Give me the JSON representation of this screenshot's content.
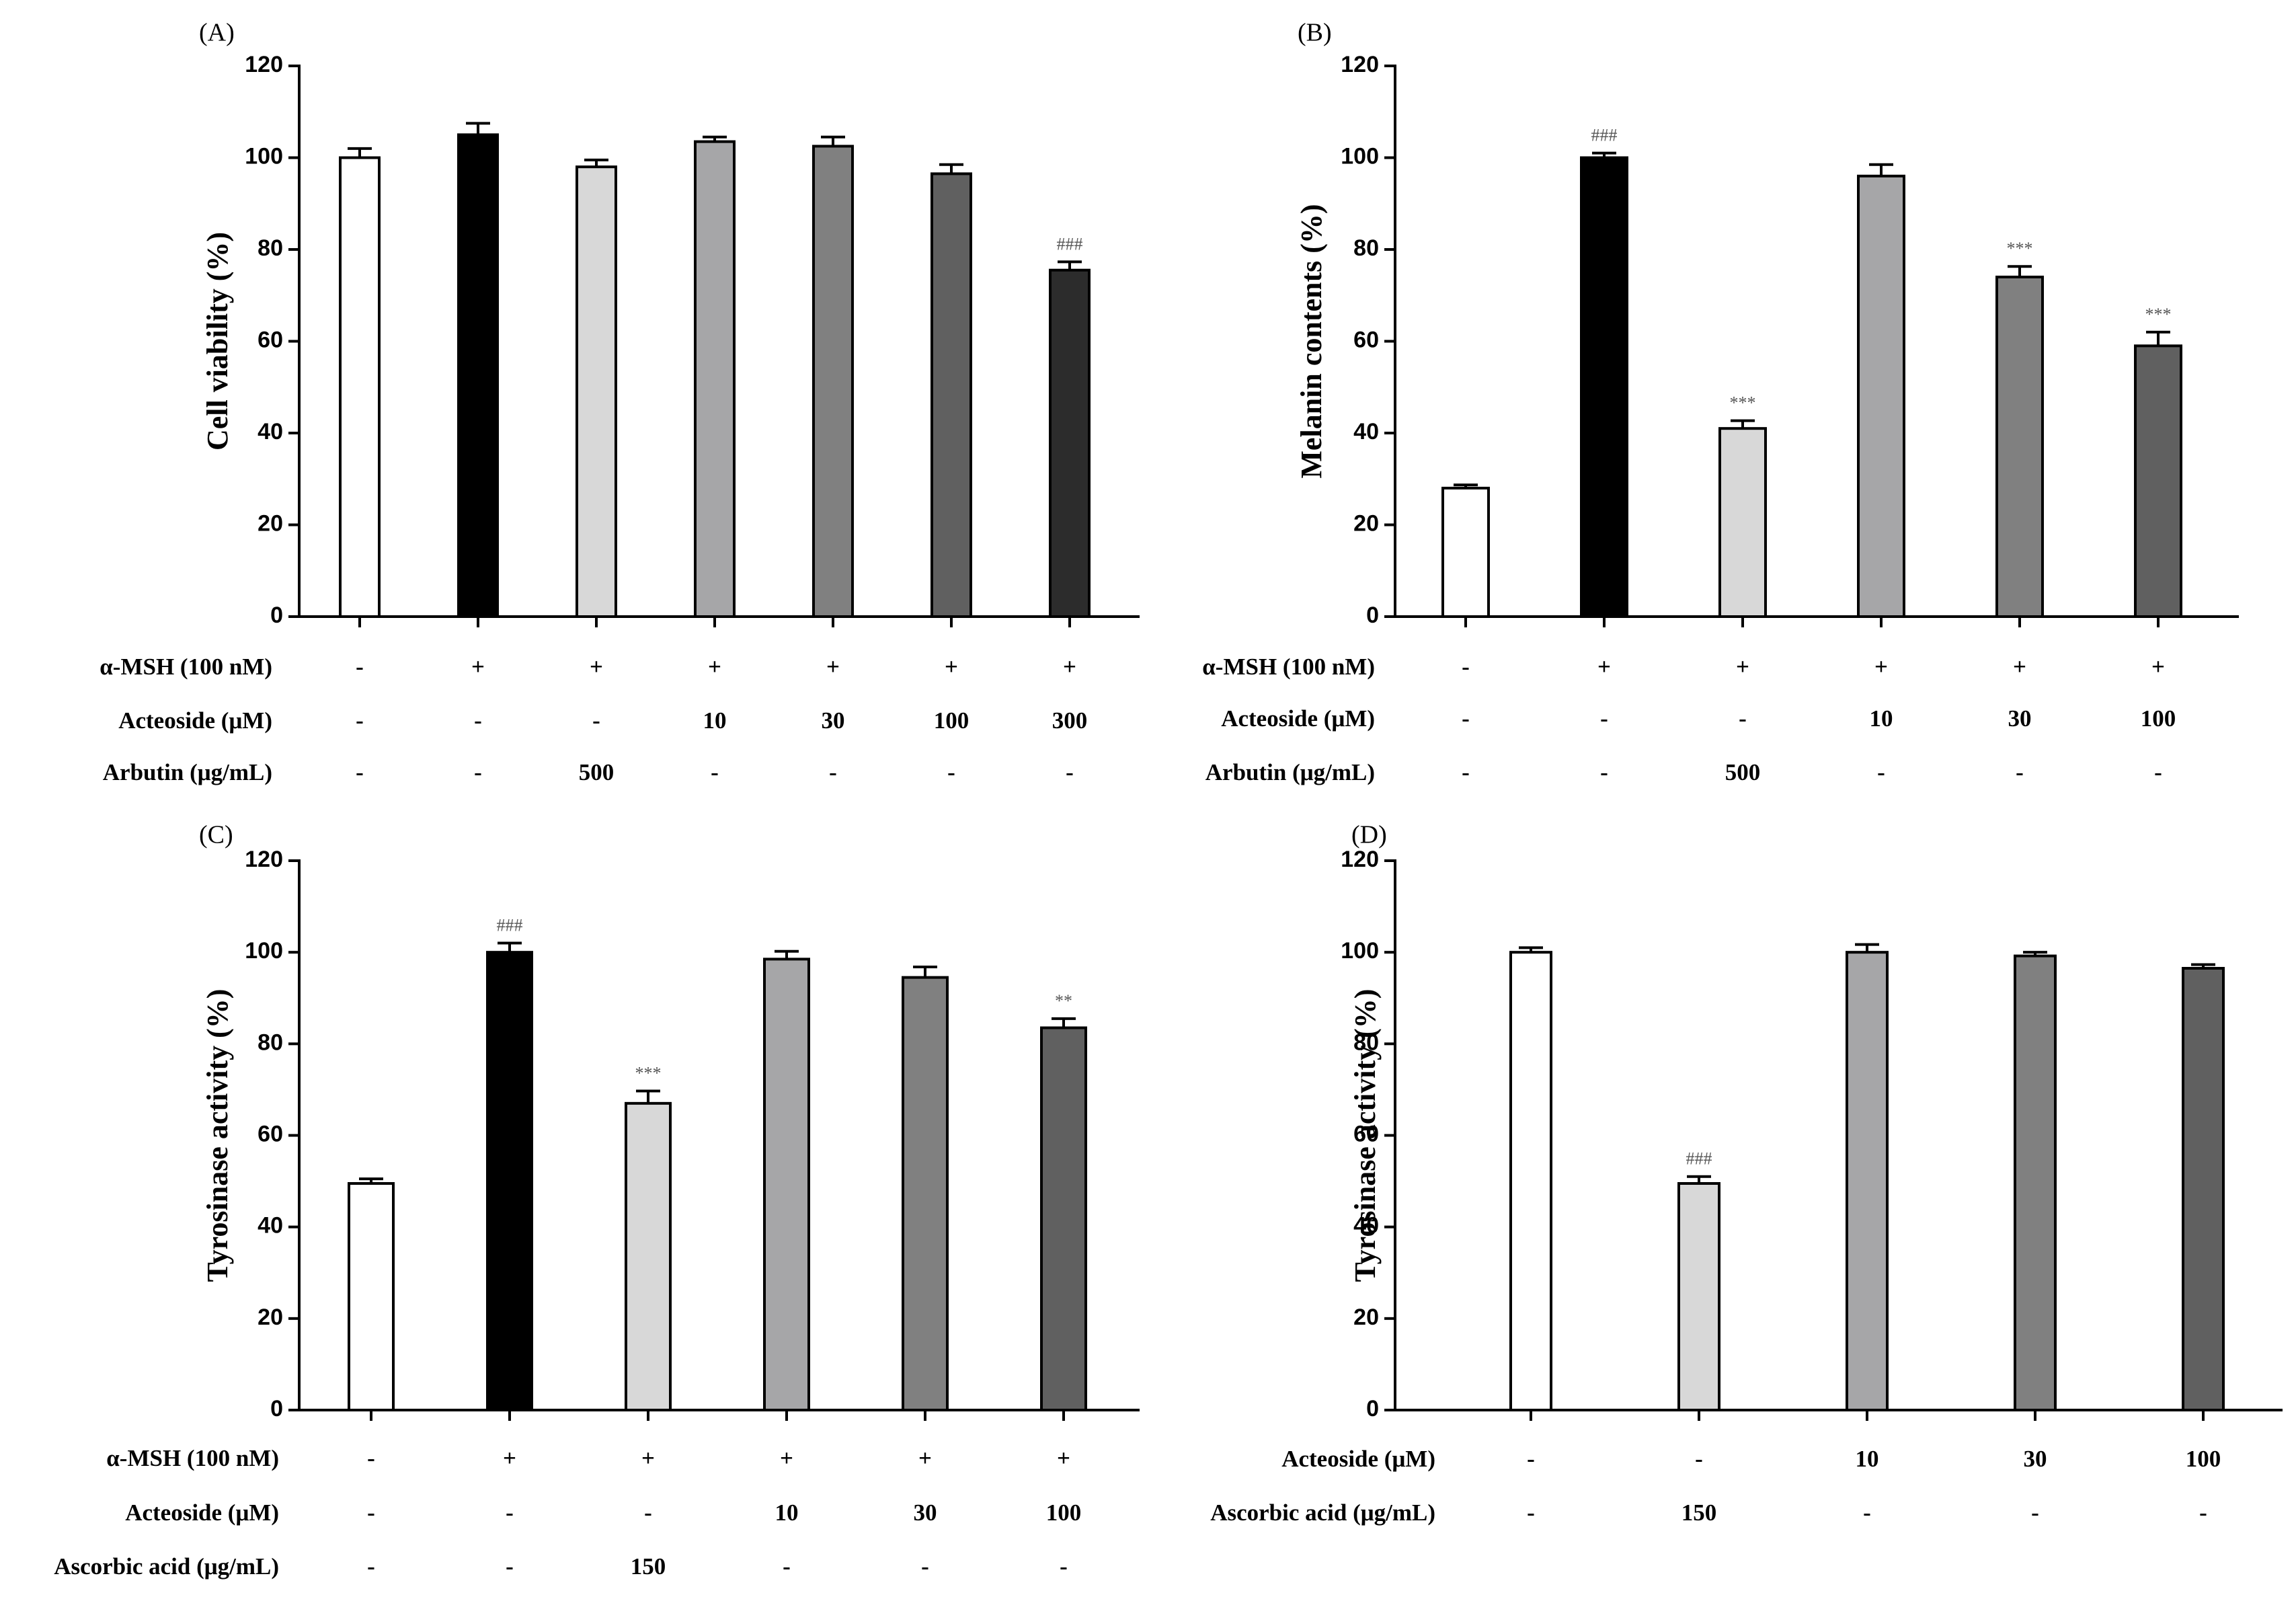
{
  "chart_data": [
    {
      "type": "bar",
      "panel_label": "(A)",
      "ylabel": "Cell viability (%)",
      "ylim": [
        0,
        120
      ],
      "yticks": [
        "0",
        "20",
        "40",
        "60",
        "80",
        "100",
        "120"
      ],
      "values": [
        100,
        105,
        98,
        103.5,
        102.5,
        96.5,
        75.5
      ],
      "errors": [
        2,
        2.5,
        1.5,
        1,
        2,
        2,
        1.8
      ],
      "fills": [
        "#ffffff",
        "#000000",
        "#d8d8d8",
        "#a6a6a8",
        "#808080",
        "#606060",
        "#2c2c2c"
      ],
      "annotations": [
        "",
        "",
        "",
        "",
        "",
        "",
        "###"
      ],
      "conditions": [
        {
          "label": "α-MSH (100 nM)",
          "values": [
            "-",
            "+",
            "+",
            "+",
            "+",
            "+",
            "+"
          ]
        },
        {
          "label": "Acteoside (μM)",
          "values": [
            "-",
            "-",
            "-",
            "10",
            "30",
            "100",
            "300"
          ]
        },
        {
          "label": "Arbutin (μg/mL)",
          "values": [
            "-",
            "-",
            "500",
            "-",
            "-",
            "-",
            "-"
          ]
        }
      ]
    },
    {
      "type": "bar",
      "panel_label": "(B)",
      "ylabel": "Melanin contents (%)",
      "ylim": [
        0,
        120
      ],
      "yticks": [
        "0",
        "20",
        "40",
        "60",
        "80",
        "100",
        "120"
      ],
      "values": [
        28,
        100,
        41,
        96,
        74,
        59
      ],
      "errors": [
        0.7,
        1,
        1.7,
        2.5,
        2.3,
        3
      ],
      "fills": [
        "#ffffff",
        "#000000",
        "#d8d8d8",
        "#a6a6a8",
        "#808080",
        "#606060"
      ],
      "annotations": [
        "",
        "###",
        "***",
        "",
        "***",
        "***"
      ],
      "conditions": [
        {
          "label": "α-MSH (100 nM)",
          "values": [
            "-",
            "+",
            "+",
            "+",
            "+",
            "+"
          ]
        },
        {
          "label": "Acteoside (μM)",
          "values": [
            "-",
            "-",
            "-",
            "10",
            "30",
            "100"
          ]
        },
        {
          "label": "Arbutin (μg/mL)",
          "values": [
            "-",
            "-",
            "500",
            "-",
            "-",
            "-"
          ]
        }
      ]
    },
    {
      "type": "bar",
      "panel_label": "(C)",
      "ylabel": "Tyrosinase activity (%)",
      "ylim": [
        0,
        120
      ],
      "yticks": [
        "0",
        "20",
        "40",
        "60",
        "80",
        "100",
        "120"
      ],
      "values": [
        49.5,
        100,
        67,
        98.5,
        94.5,
        83.5
      ],
      "errors": [
        1,
        2,
        2.7,
        1.7,
        2.3,
        2
      ],
      "fills": [
        "#ffffff",
        "#000000",
        "#d8d8d8",
        "#a6a6a8",
        "#808080",
        "#606060"
      ],
      "annotations": [
        "",
        "###",
        "***",
        "",
        "",
        "**"
      ],
      "conditions": [
        {
          "label": "α-MSH (100 nM)",
          "values": [
            "-",
            "+",
            "+",
            "+",
            "+",
            "+"
          ]
        },
        {
          "label": "Acteoside (μM)",
          "values": [
            "-",
            "-",
            "-",
            "10",
            "30",
            "100"
          ]
        },
        {
          "label": "Ascorbic acid (μg/mL)",
          "values": [
            "-",
            "-",
            "150",
            "-",
            "-",
            "-"
          ]
        }
      ]
    },
    {
      "type": "bar",
      "panel_label": "(D)",
      "ylabel": "Tyrosinase activity (%)",
      "ylim": [
        0,
        120
      ],
      "yticks": [
        "0",
        "20",
        "40",
        "60",
        "80",
        "100",
        "120"
      ],
      "values": [
        100,
        49.5,
        100,
        99.2,
        96.5
      ],
      "errors": [
        1,
        1.5,
        1.7,
        0.8,
        0.8
      ],
      "fills": [
        "#ffffff",
        "#d8d8d8",
        "#a6a6a8",
        "#808080",
        "#606060"
      ],
      "annotations": [
        "",
        "###",
        "",
        "",
        ""
      ],
      "conditions": [
        {
          "label": "Acteoside (μM)",
          "values": [
            "-",
            "-",
            "10",
            "30",
            "100"
          ]
        },
        {
          "label": "Ascorbic acid (μg/mL)",
          "values": [
            "-",
            "150",
            "-",
            "-",
            "-"
          ]
        }
      ]
    }
  ]
}
